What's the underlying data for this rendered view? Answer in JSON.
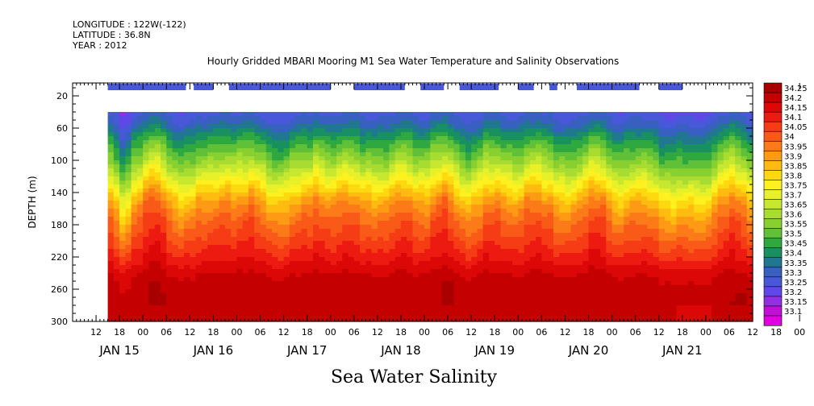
{
  "header": {
    "longitude": "LONGITUDE : 122W(-122)",
    "latitude": "LATITUDE : 36.8N",
    "year": "YEAR : 2012"
  },
  "chart_data": {
    "type": "heatmap",
    "title": "Hourly Gridded MBARI Mooring M1 Sea Water Temperature and Salinity Observations",
    "xlabel": "Sea Water Salinity",
    "ylabel": "DEPTH (m)",
    "x_range_hours_from_jan15_00": [
      -18,
      156
    ],
    "data_start_hour": -9,
    "data_end_hour": 156,
    "ylim": [
      300,
      4
    ],
    "data_top_depth": 40,
    "y_ticks": [
      20,
      60,
      100,
      140,
      180,
      220,
      260,
      300
    ],
    "x_hour_ticks": [
      "12",
      "18",
      "00",
      "06",
      "12",
      "18",
      "00",
      "06",
      "12",
      "18",
      "00",
      "06",
      "12",
      "18",
      "00",
      "06",
      "12",
      "18",
      "00",
      "06",
      "12",
      "18",
      "00",
      "06",
      "12",
      "18",
      "00",
      "06",
      "12",
      "18",
      "00"
    ],
    "x_day_labels": [
      "JAN 15",
      "JAN 16",
      "JAN 17",
      "JAN 18",
      "JAN 19",
      "JAN 20",
      "JAN 21"
    ],
    "coverage_bars_hours": [
      [
        -9,
        11
      ],
      [
        13,
        18
      ],
      [
        22,
        48
      ],
      [
        54,
        67
      ],
      [
        71,
        77
      ],
      [
        81,
        91
      ],
      [
        96,
        100
      ],
      [
        104,
        106
      ],
      [
        111,
        127
      ],
      [
        132,
        138
      ]
    ],
    "colorbar": {
      "levels": [
        "34.25",
        "34.2",
        "34.15",
        "34.1",
        "34.05",
        "34",
        "33.95",
        "33.9",
        "33.85",
        "33.8",
        "33.75",
        "33.7",
        "33.65",
        "33.6",
        "33.55",
        "33.5",
        "33.45",
        "33.4",
        "33.35",
        "33.3",
        "33.25",
        "33.2",
        "33.15",
        "33.1"
      ],
      "colors": [
        "#a80000",
        "#c40000",
        "#dc0808",
        "#ec1a10",
        "#f53c14",
        "#fa5a18",
        "#fc7a18",
        "#fe9a14",
        "#ffbb10",
        "#ffd910",
        "#fff020",
        "#e8f028",
        "#c8e830",
        "#a8dc30",
        "#88d030",
        "#60c038",
        "#30a840",
        "#189060",
        "#207890",
        "#3860c0",
        "#4858d8",
        "#6048e8",
        "#9030e0",
        "#c010d8",
        "#e000e0"
      ]
    },
    "profile_depths": [
      40,
      55,
      75,
      100,
      125,
      150,
      175,
      200,
      225,
      245,
      270,
      300
    ],
    "profile_salinity": [
      33.27,
      33.33,
      33.45,
      33.58,
      33.73,
      33.89,
      33.99,
      34.06,
      34.14,
      34.21,
      34.23,
      34.24
    ]
  }
}
